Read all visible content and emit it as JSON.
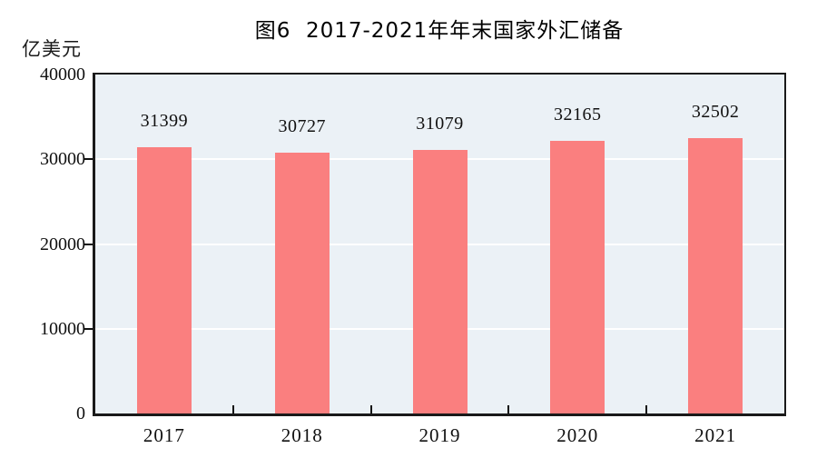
{
  "chart_data": {
    "type": "bar",
    "title": "图6  2017-2021年年末国家外汇储备",
    "unit_label": "亿美元",
    "categories": [
      "2017",
      "2018",
      "2019",
      "2020",
      "2021"
    ],
    "values": [
      31399,
      30727,
      31079,
      32165,
      32502
    ],
    "xlabel": "",
    "ylabel": "亿美元",
    "ylim": [
      0,
      40000
    ],
    "yticks": [
      0,
      10000,
      20000,
      30000,
      40000
    ],
    "gridlines": [
      10000,
      20000,
      30000
    ],
    "legend": "none",
    "grid": "horizontal-white-lines",
    "colors": {
      "bar": "#FA7F7F",
      "plot_background": "#EBF1F6",
      "gridline": "#FFFFFF",
      "axis": "#1A1A1A",
      "text": "#111111"
    }
  }
}
